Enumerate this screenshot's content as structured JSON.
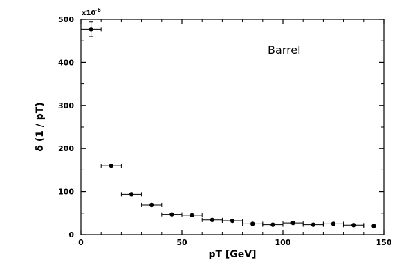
{
  "chart_data": {
    "type": "scatter",
    "title": "",
    "annotation": "Barrel",
    "xlabel": "pT [GeV]",
    "ylabel": "δ (1 / pT)",
    "y_multiplier": {
      "base": "x10",
      "exponent": "-6"
    },
    "xlim": [
      0,
      150
    ],
    "ylim": [
      0,
      500
    ],
    "x_ticks": [
      0,
      50,
      100,
      150
    ],
    "y_ticks": [
      0,
      100,
      200,
      300,
      400,
      500
    ],
    "grid": false,
    "series": [
      {
        "points": [
          {
            "x": 5,
            "y": 477,
            "xerr": 5,
            "yerr": 17
          },
          {
            "x": 15,
            "y": 160,
            "xerr": 5,
            "yerr": 0
          },
          {
            "x": 25,
            "y": 94,
            "xerr": 5,
            "yerr": 0
          },
          {
            "x": 35,
            "y": 69,
            "xerr": 5,
            "yerr": 0
          },
          {
            "x": 45,
            "y": 47,
            "xerr": 5,
            "yerr": 0
          },
          {
            "x": 55,
            "y": 45,
            "xerr": 5,
            "yerr": 0
          },
          {
            "x": 65,
            "y": 34,
            "xerr": 5,
            "yerr": 0
          },
          {
            "x": 75,
            "y": 32,
            "xerr": 5,
            "yerr": 0
          },
          {
            "x": 85,
            "y": 25,
            "xerr": 5,
            "yerr": 0
          },
          {
            "x": 95,
            "y": 23,
            "xerr": 5,
            "yerr": 0
          },
          {
            "x": 105,
            "y": 27,
            "xerr": 5,
            "yerr": 0
          },
          {
            "x": 115,
            "y": 23,
            "xerr": 5,
            "yerr": 0
          },
          {
            "x": 125,
            "y": 25,
            "xerr": 5,
            "yerr": 0
          },
          {
            "x": 135,
            "y": 22,
            "xerr": 5,
            "yerr": 0
          },
          {
            "x": 145,
            "y": 20,
            "xerr": 5,
            "yerr": 0
          }
        ]
      }
    ]
  }
}
